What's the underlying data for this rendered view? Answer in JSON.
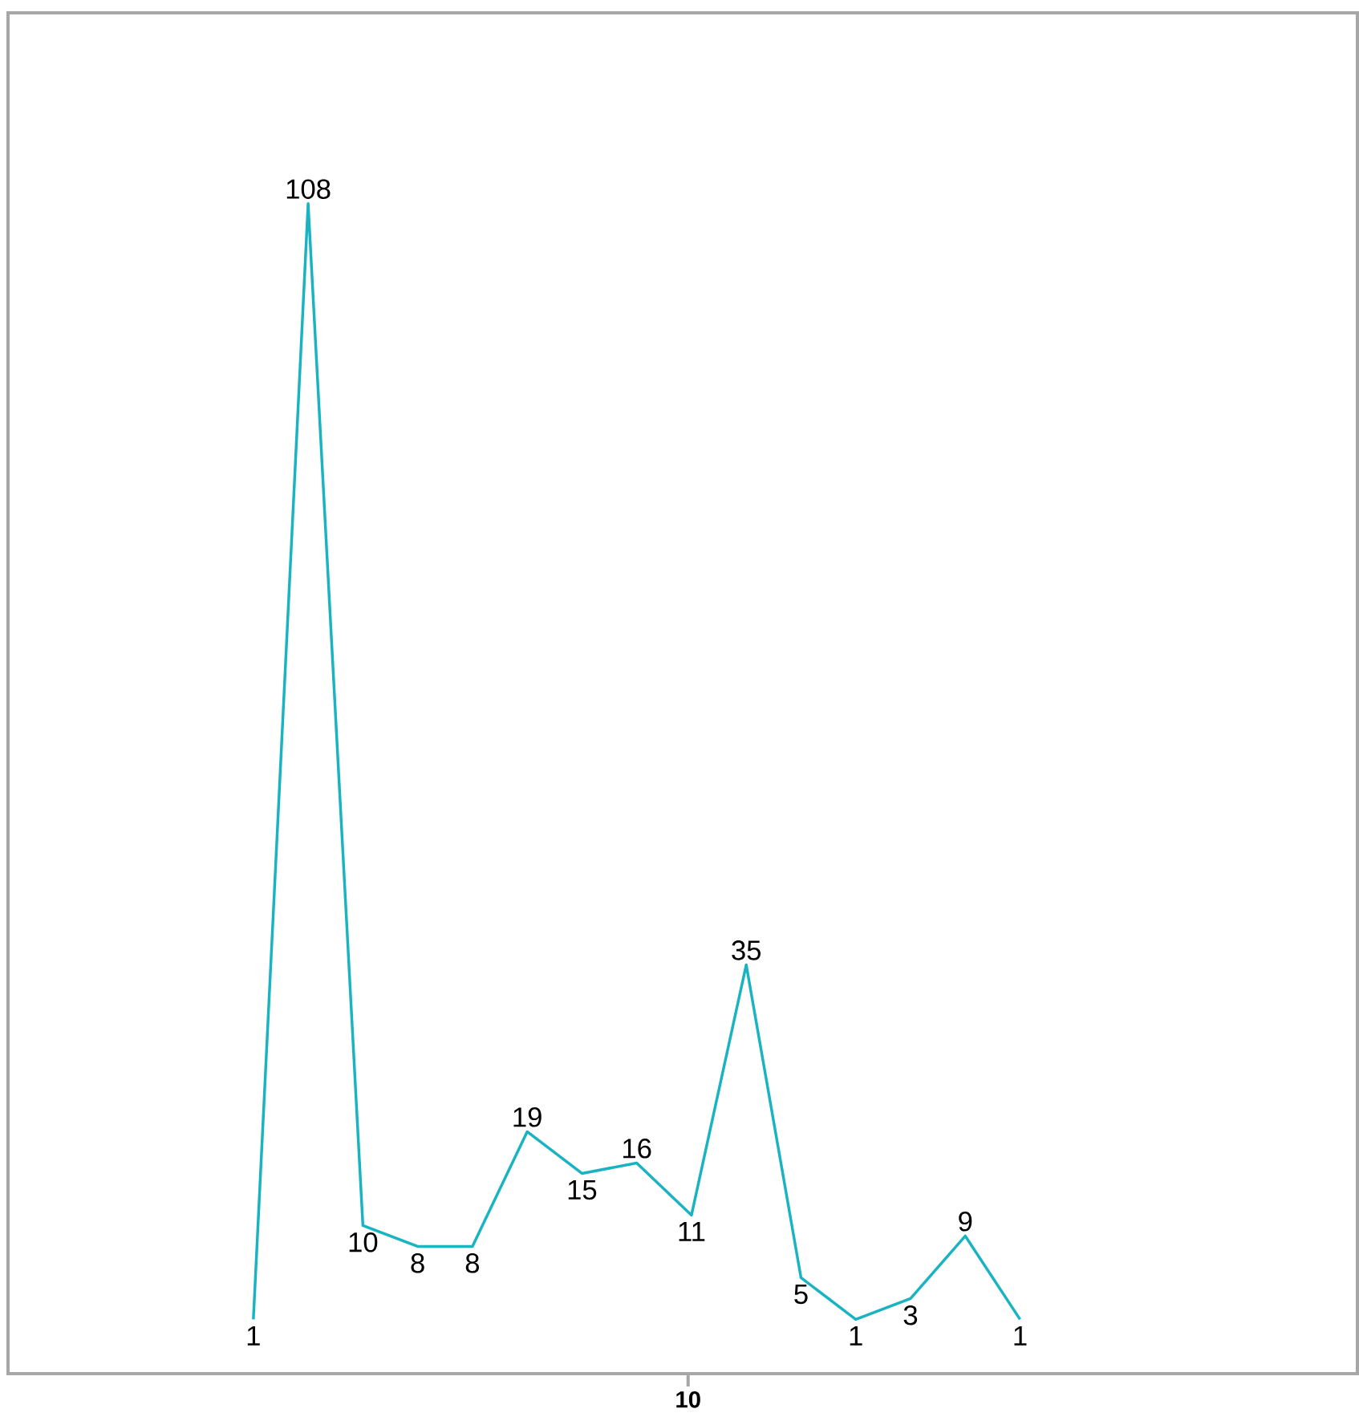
{
  "chart_data": {
    "type": "line",
    "categories": [
      null,
      null,
      null,
      null,
      null,
      null,
      null,
      null,
      null,
      null,
      null,
      null,
      null,
      null,
      null
    ],
    "series": [
      {
        "color": "#1ab3c1",
        "values": [
          1,
          108,
          10,
          8,
          8,
          19,
          15,
          16,
          11,
          35,
          5,
          1,
          3,
          9,
          1
        ]
      }
    ],
    "ylim": [
      -4.2,
      126.3
    ],
    "annotations": [
      "10"
    ],
    "data_labels": true,
    "marker": "none",
    "line_style": "solid"
  }
}
